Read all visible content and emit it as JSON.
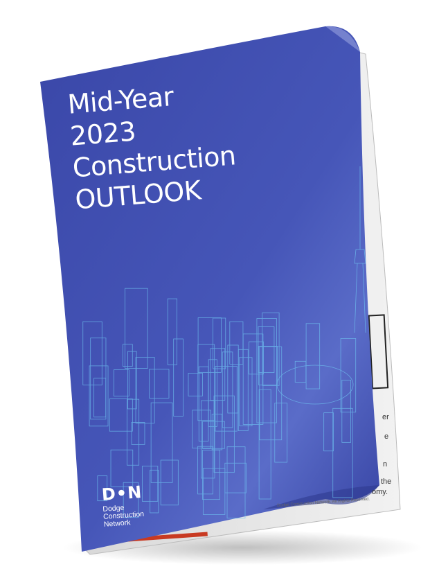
{
  "cover": {
    "title_lines": [
      "Mid-Year",
      "2023",
      "Construction",
      "OUTLOOK"
    ],
    "brand_color": "#3d4fb0"
  },
  "logo": {
    "mark": "D•N",
    "name_lines": [
      "Dodge",
      "Construction",
      "Network"
    ]
  },
  "back_page": {
    "text_fragments": [
      "er",
      "e",
      "n",
      "the",
      "omy."
    ],
    "footer": "Dodge Construction Network. All Rights Reserved."
  }
}
